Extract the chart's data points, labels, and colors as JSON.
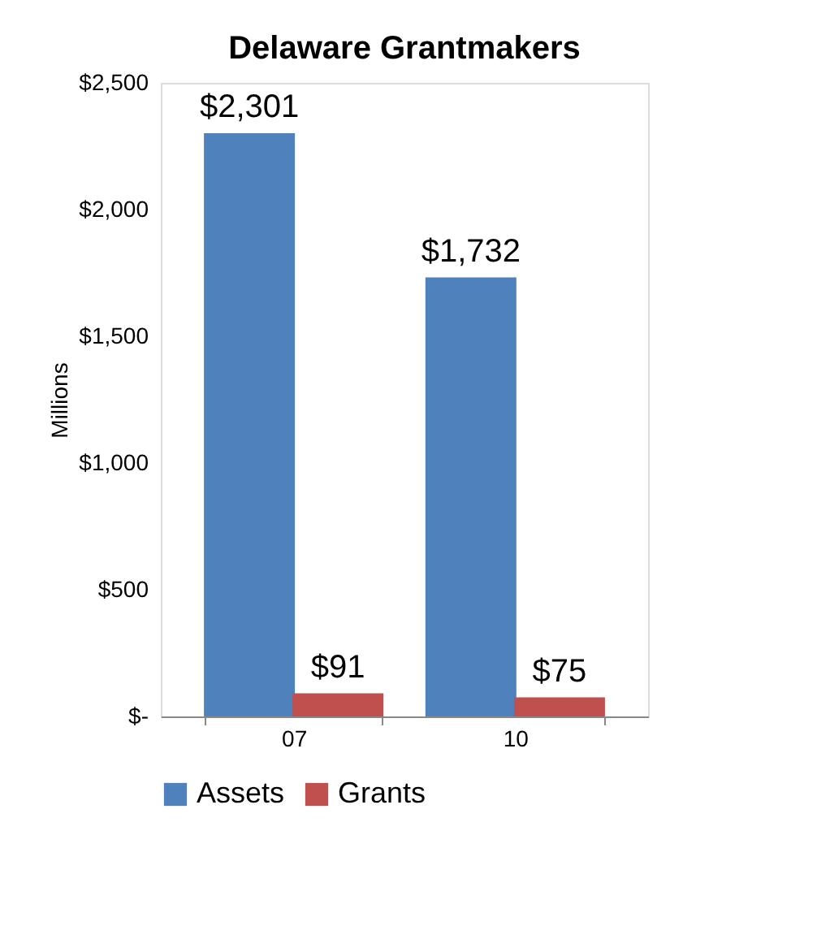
{
  "chart_data": {
    "type": "bar",
    "title": "Delaware Grantmakers",
    "ylabel": "Millions",
    "categories": [
      "07",
      "10"
    ],
    "series": [
      {
        "name": "Assets",
        "color": "#4f81bd",
        "values": [
          2301,
          1732
        ],
        "value_labels": [
          "$2,301",
          "$1,732"
        ]
      },
      {
        "name": "Grants",
        "color": "#c0504d",
        "values": [
          91,
          75
        ],
        "value_labels": [
          "$91",
          "$75"
        ]
      }
    ],
    "ylim": [
      0,
      2500
    ],
    "yticks": [
      {
        "value": 0,
        "label": "$-"
      },
      {
        "value": 500,
        "label": "$500"
      },
      {
        "value": 1000,
        "label": "$1,000"
      },
      {
        "value": 1500,
        "label": "$1,500"
      },
      {
        "value": 2000,
        "label": "$2,000"
      },
      {
        "value": 2500,
        "label": "$2,500"
      }
    ],
    "grid": false,
    "legend": "bottom"
  }
}
